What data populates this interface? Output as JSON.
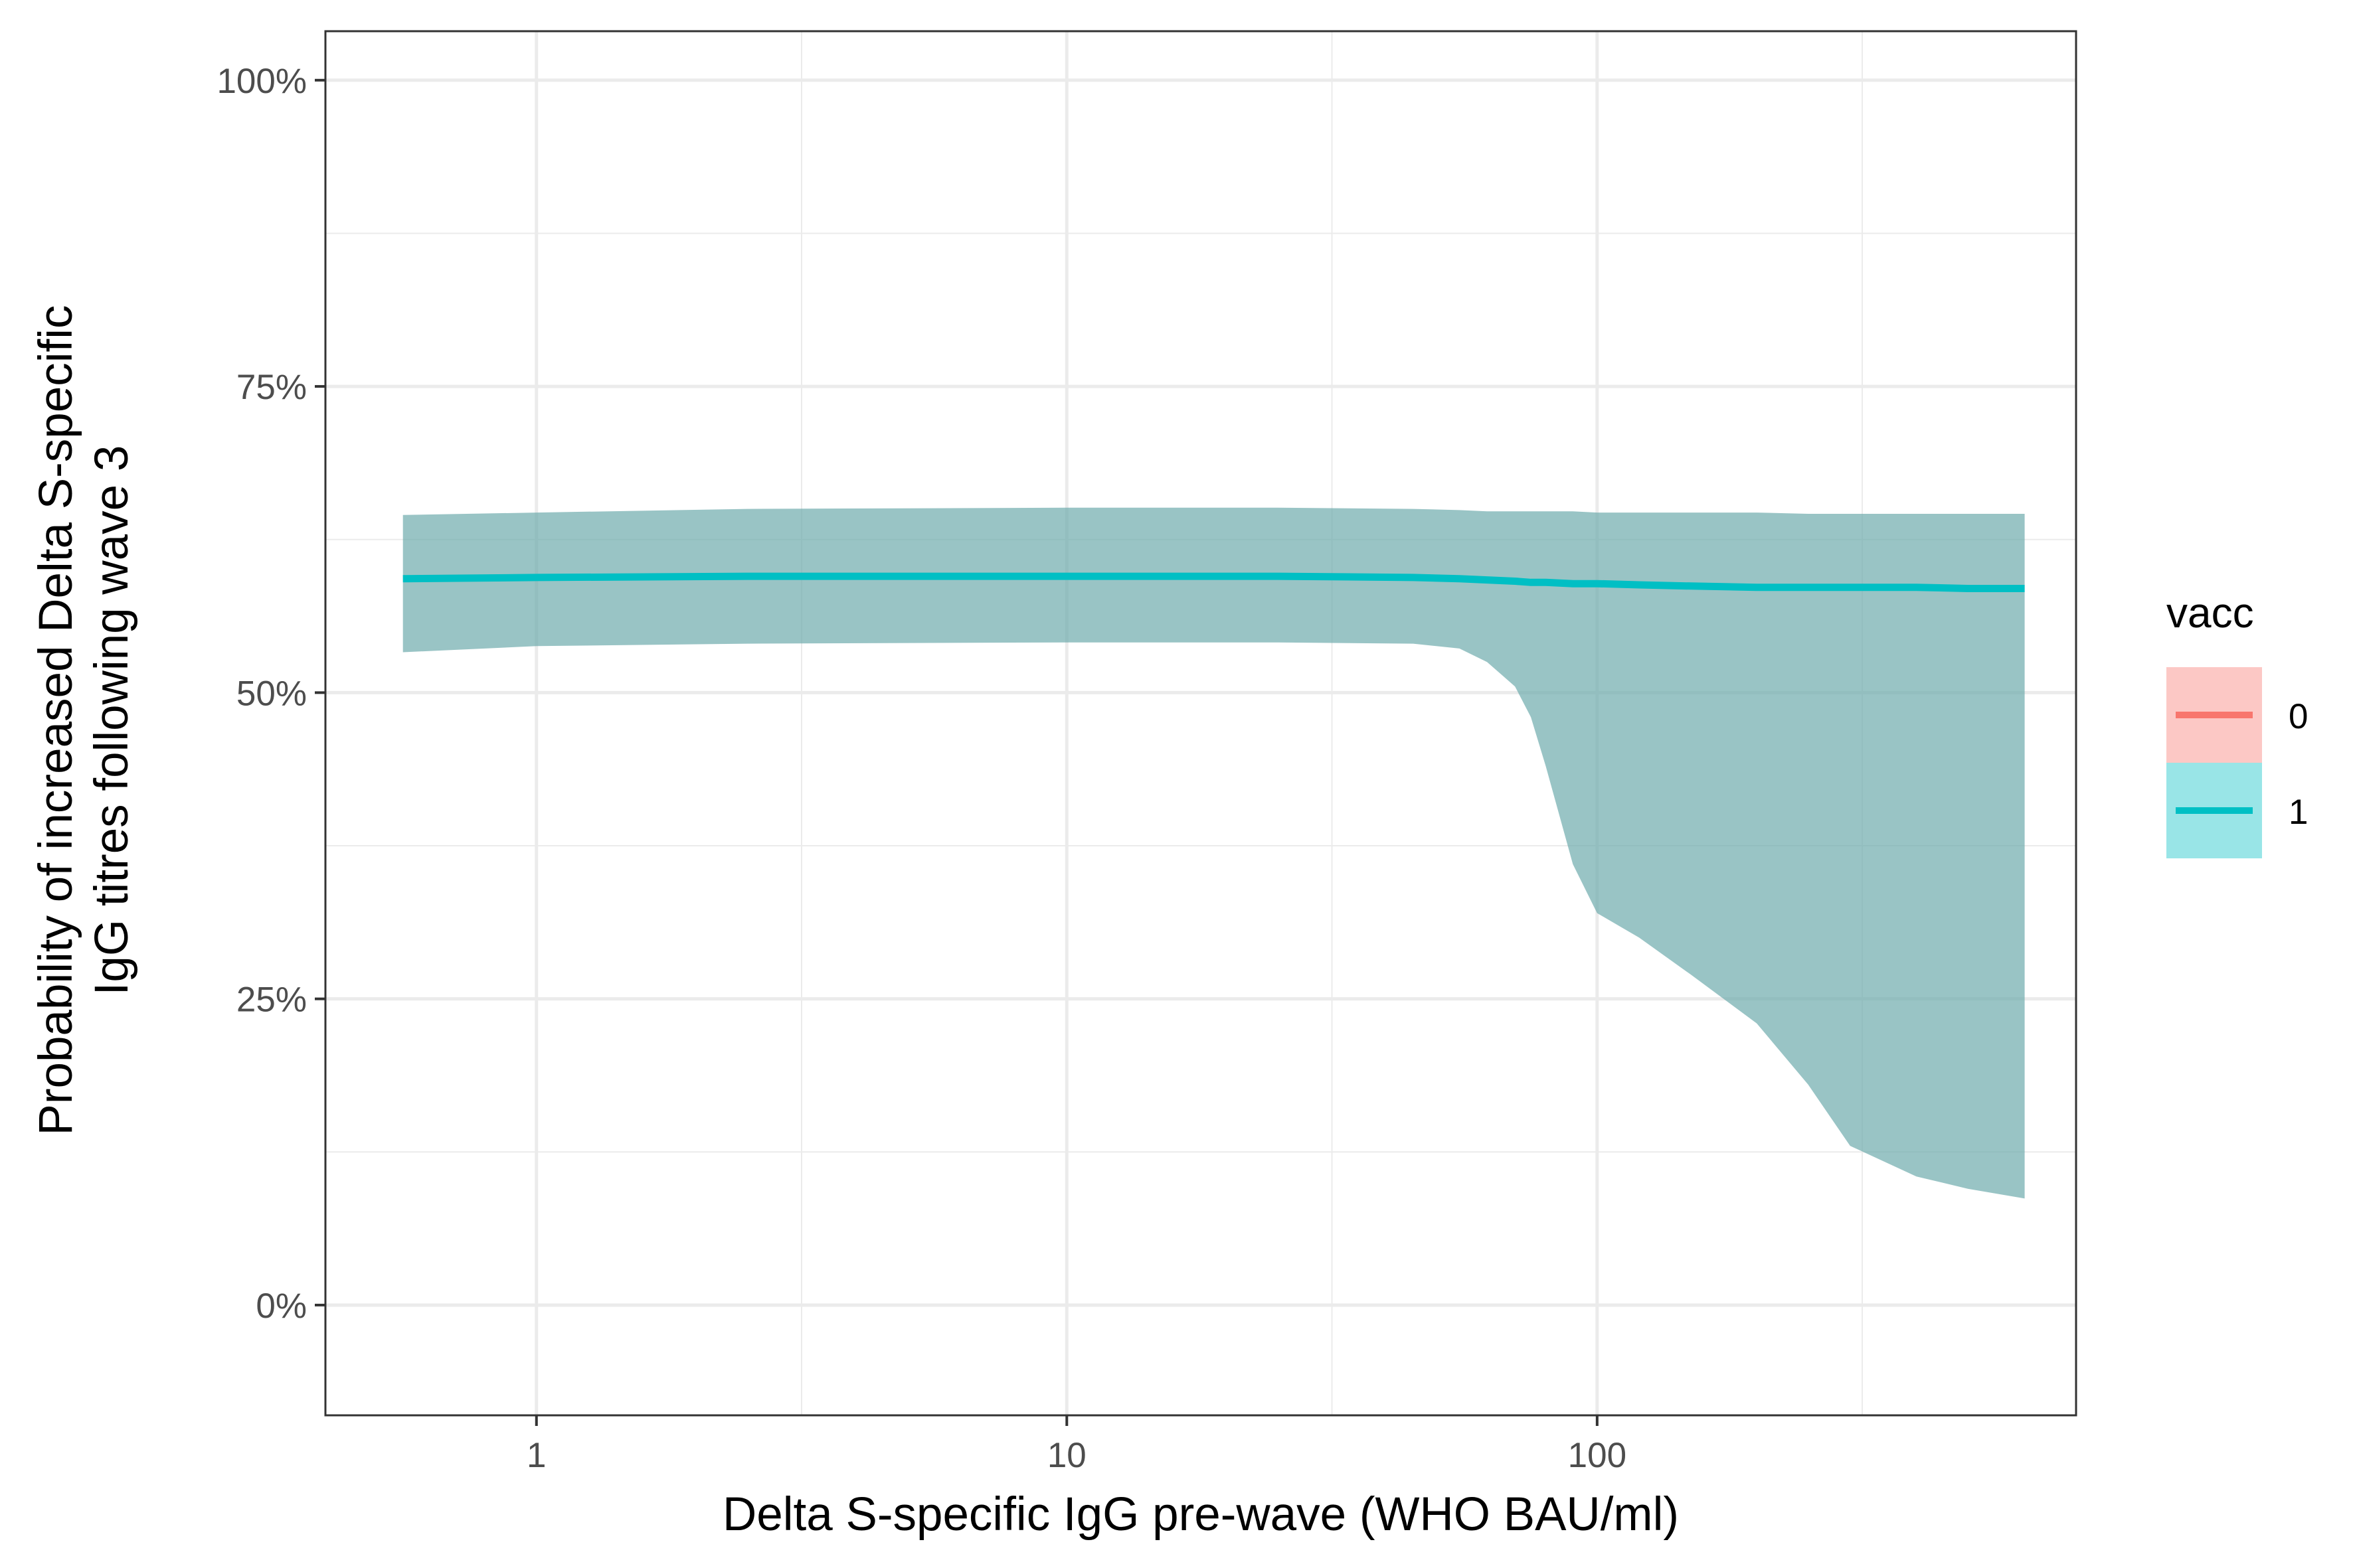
{
  "chart_data": {
    "type": "line",
    "xlabel": "Delta S-specific IgG pre-wave (WHO BAU/ml)",
    "ylabel_lines": [
      "Probability of increased Delta S-specific",
      "IgG titres following wave 3"
    ],
    "x_scale": "log10",
    "xlim": [
      0.4,
      800
    ],
    "ylim": [
      -0.09,
      1.04
    ],
    "x_ticks": [
      1,
      10,
      100
    ],
    "x_tick_labels": [
      "1",
      "10",
      "100"
    ],
    "x_minor_ticks": [
      0.316,
      3.162,
      31.62,
      316.2
    ],
    "y_ticks": [
      0,
      0.25,
      0.5,
      0.75,
      1.0
    ],
    "y_tick_labels": [
      "0%",
      "25%",
      "50%",
      "75%",
      "100%"
    ],
    "y_minor_ticks": [
      0.125,
      0.375,
      0.625,
      0.875
    ],
    "grid": true,
    "legend": {
      "title": "vacc",
      "position": "right",
      "entries": [
        {
          "label": "0",
          "line_color": "#F8766D",
          "fill_color": "#F8766D"
        },
        {
          "label": "1",
          "line_color": "#00BFC4",
          "fill_color": "#00BFC4"
        }
      ]
    },
    "series": [
      {
        "name": "1",
        "color": "#00BFC4",
        "ribbon_color": "#68A8AA",
        "x": [
          0.56,
          1,
          2.5,
          10,
          25,
          45,
          55,
          62,
          70,
          75,
          80,
          90,
          100,
          120,
          150,
          200,
          250,
          300,
          400,
          500,
          640
        ],
        "y": [
          0.593,
          0.594,
          0.595,
          0.595,
          0.595,
          0.594,
          0.593,
          0.592,
          0.591,
          0.59,
          0.59,
          0.589,
          0.589,
          0.588,
          0.587,
          0.586,
          0.586,
          0.586,
          0.586,
          0.585,
          0.585
        ],
        "upper": [
          0.645,
          0.647,
          0.65,
          0.651,
          0.651,
          0.65,
          0.649,
          0.648,
          0.648,
          0.648,
          0.648,
          0.648,
          0.647,
          0.647,
          0.647,
          0.647,
          0.646,
          0.646,
          0.646,
          0.646,
          0.646
        ],
        "lower": [
          0.533,
          0.538,
          0.54,
          0.541,
          0.541,
          0.54,
          0.536,
          0.525,
          0.505,
          0.48,
          0.44,
          0.36,
          0.32,
          0.3,
          0.27,
          0.23,
          0.18,
          0.13,
          0.105,
          0.095,
          0.087
        ]
      }
    ]
  }
}
